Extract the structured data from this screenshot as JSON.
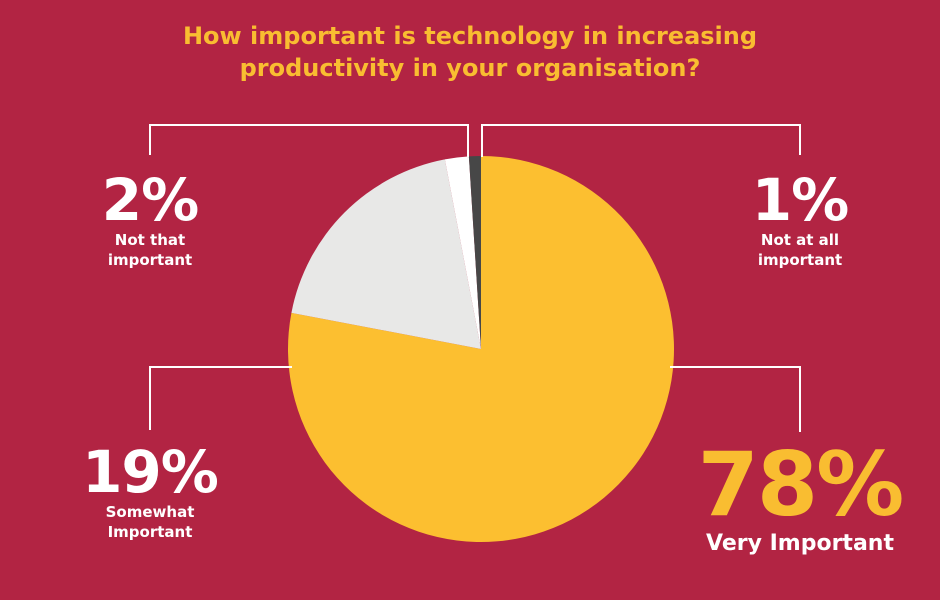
{
  "chart_data": {
    "type": "pie",
    "title": "How important is technology in increasing productivity in your organisation?",
    "title_lines": [
      "How important is technology in increasing",
      "productivity in your organisation?"
    ],
    "slices": [
      {
        "label": "Very Important",
        "label_lines": [
          "Very Important"
        ],
        "percent": "78%",
        "value": 78,
        "color": "#fcbf30"
      },
      {
        "label": "Somewhat Important",
        "label_lines": [
          "Somewhat",
          "Important"
        ],
        "percent": "19%",
        "value": 19,
        "color": "#e8e8e7"
      },
      {
        "label": "Not that important",
        "label_lines": [
          "Not that",
          "important"
        ],
        "percent": "2%",
        "value": 2,
        "color": "#ffffff"
      },
      {
        "label": "Not at all important",
        "label_lines": [
          "Not at all",
          "important"
        ],
        "percent": "1%",
        "value": 1,
        "color": "#474747"
      }
    ]
  },
  "colors": {
    "background": "#b22443",
    "title": "#f9bd31",
    "leader_lines": "#ffffff"
  }
}
